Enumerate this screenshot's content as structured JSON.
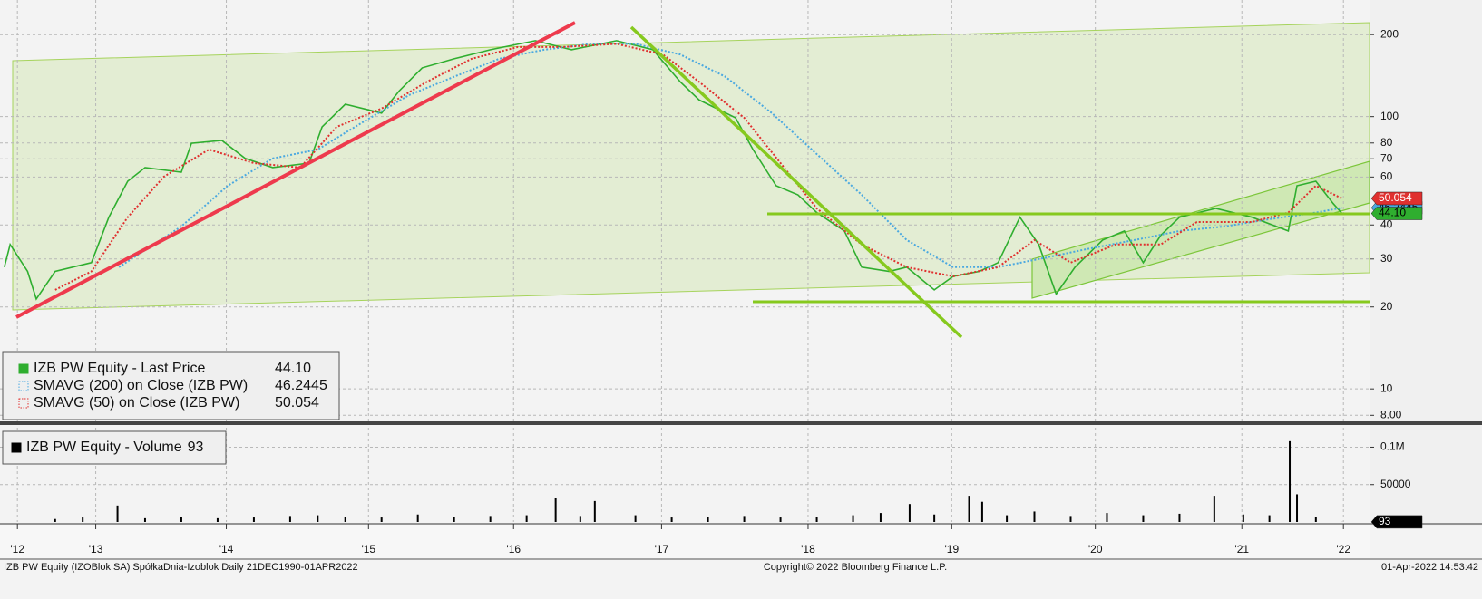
{
  "chart_data": [
    {
      "type": "line",
      "yscale": "log",
      "grid": true,
      "xlim": [
        2012.96,
        2022.4
      ],
      "ylim": [
        7.6,
        268
      ],
      "yticks": [
        200,
        100,
        80,
        70,
        60,
        40,
        30,
        20,
        10,
        {
          "value": 8,
          "label": "8.00"
        }
      ],
      "series": [
        {
          "name": "IZB PW Equity - Last Price",
          "color": "#2fae2f",
          "style": "solid",
          "last_label": "44.10",
          "x": [
            2012.99,
            2013.03,
            2013.15,
            2013.21,
            2013.34,
            2013.59,
            2013.71,
            2013.84,
            2013.96,
            2014.21,
            2014.28,
            2014.49,
            2014.65,
            2014.84,
            2015.09,
            2015.18,
            2015.34,
            2015.59,
            2015.71,
            2015.87,
            2016.09,
            2016.34,
            2016.65,
            2016.9,
            2017.21,
            2017.46,
            2017.65,
            2017.78,
            2018.03,
            2018.15,
            2018.31,
            2018.46,
            2018.59,
            2018.78,
            2018.9,
            2019.09,
            2019.21,
            2019.4,
            2019.53,
            2019.71,
            2019.84,
            2019.99,
            2020.12,
            2020.24,
            2020.37,
            2020.56,
            2020.71,
            2020.84,
            2020.96,
            2021.09,
            2021.34,
            2021.59,
            2021.84,
            2021.9,
            2022.03,
            2022.15,
            2022.21
          ],
          "values": [
            28.0,
            33.9,
            27.0,
            21.4,
            27.0,
            29.1,
            42.7,
            57.9,
            65.0,
            62.5,
            79.8,
            81.7,
            70.2,
            65.0,
            67.5,
            91.6,
            111,
            103,
            124,
            151,
            163,
            176,
            190,
            176,
            190,
            176,
            134,
            115,
            99,
            75.7,
            55.7,
            51.6,
            44.4,
            38.0,
            28.0,
            27.0,
            28.0,
            23.1,
            25.9,
            27.0,
            29.1,
            42.7,
            33.9,
            22.3,
            28.0,
            35.2,
            38.0,
            29.1,
            36.6,
            42.7,
            46.0,
            42.7,
            38.0,
            55.7,
            57.9,
            47.9,
            44.1
          ]
        },
        {
          "name": "SMAVG (200)  on Close (IZB PW)",
          "color": "#4aa8e0",
          "style": "dotted",
          "last_label": "46.2445",
          "x": [
            2013.78,
            2014.21,
            2014.53,
            2014.84,
            2015.15,
            2015.46,
            2015.78,
            2016.09,
            2016.4,
            2016.71,
            2017.03,
            2017.34,
            2017.65,
            2017.96,
            2018.28,
            2018.59,
            2018.9,
            2019.21,
            2019.53,
            2019.84,
            2020.15,
            2020.46,
            2020.78,
            2021.09,
            2021.4,
            2021.71,
            2022.03,
            2022.21
          ],
          "values": [
            28.0,
            39.5,
            55.7,
            70.2,
            75.7,
            95.3,
            120,
            140,
            163,
            176,
            185,
            185,
            169,
            140,
            103,
            72.8,
            51.6,
            35.2,
            28.0,
            28.0,
            30.2,
            32.7,
            35.2,
            38.0,
            39.5,
            42.0,
            44.4,
            46.2445
          ]
        },
        {
          "name": "SMAVG (50)  on Close (IZB PW)",
          "color": "#e0302f",
          "style": "dotted",
          "last_label": "50.054",
          "x": [
            2013.34,
            2013.59,
            2013.84,
            2014.09,
            2014.4,
            2014.71,
            2015.03,
            2015.28,
            2015.59,
            2015.9,
            2016.21,
            2016.53,
            2016.84,
            2017.21,
            2017.53,
            2017.78,
            2018.09,
            2018.34,
            2018.59,
            2018.9,
            2019.21,
            2019.53,
            2019.84,
            2020.09,
            2020.34,
            2020.65,
            2020.96,
            2021.21,
            2021.59,
            2021.84,
            2022.03,
            2022.21
          ],
          "values": [
            23.1,
            27.0,
            42.7,
            60.2,
            75.7,
            67.5,
            65.0,
            91.6,
            107,
            134,
            163,
            180,
            180,
            185,
            169,
            134,
            99,
            67.5,
            46.0,
            33.9,
            28.0,
            25.9,
            28.0,
            35.2,
            29.1,
            33.9,
            33.9,
            41.0,
            41.0,
            44.4,
            55.7,
            50.054
          ]
        }
      ]
    },
    {
      "type": "bar",
      "grid": true,
      "xlim": [
        2012.96,
        2022.4
      ],
      "ylim": [
        0,
        126000
      ],
      "yticks": [
        {
          "value": 100000,
          "label": "0.1M"
        },
        50000
      ],
      "xticks": [
        {
          "value": 2013.08,
          "label": "'12"
        },
        {
          "value": 2013.62,
          "label": "'13"
        },
        {
          "value": 2014.52,
          "label": "'14"
        },
        {
          "value": 2015.5,
          "label": "'15"
        },
        {
          "value": 2016.5,
          "label": "'16"
        },
        {
          "value": 2017.52,
          "label": "'17"
        },
        {
          "value": 2018.53,
          "label": "'18"
        },
        {
          "value": 2019.52,
          "label": "'19"
        },
        {
          "value": 2020.51,
          "label": "'20"
        },
        {
          "value": 2021.52,
          "label": "'21"
        },
        {
          "value": 2022.22,
          "label": "'22"
        }
      ],
      "series": [
        {
          "name": "IZB PW Equity - Volume",
          "color": "#000000",
          "last_label": "93",
          "x": [
            2013.34,
            2013.53,
            2013.77,
            2013.96,
            2014.21,
            2014.46,
            2014.71,
            2014.96,
            2015.15,
            2015.34,
            2015.59,
            2015.84,
            2016.09,
            2016.34,
            2016.59,
            2016.79,
            2016.96,
            2017.06,
            2017.34,
            2017.59,
            2017.84,
            2018.09,
            2018.34,
            2018.59,
            2018.84,
            2019.03,
            2019.23,
            2019.4,
            2019.64,
            2019.73,
            2019.9,
            2020.09,
            2020.34,
            2020.59,
            2020.84,
            2021.09,
            2021.33,
            2021.53,
            2021.71,
            2021.85,
            2021.9,
            2022.03,
            2022.21
          ],
          "values": [
            4000,
            6000,
            22000,
            5000,
            7000,
            5000,
            6000,
            8000,
            9000,
            7000,
            6000,
            10000,
            7000,
            8000,
            9000,
            32000,
            8000,
            28000,
            9000,
            6000,
            7000,
            8000,
            6000,
            7000,
            9000,
            12000,
            24000,
            10000,
            35000,
            27000,
            9000,
            14000,
            8000,
            12000,
            9000,
            11000,
            35000,
            10000,
            9000,
            108000,
            37000,
            7000,
            93
          ]
        }
      ]
    }
  ],
  "footer": {
    "left": "IZB PW Equity (IZOBlok SA) SpółkaDnia-Izoblok  Daily 21DEC1990-01APR2022",
    "center": "Copyright© 2022 Bloomberg Finance L.P.",
    "right": "01-Apr-2022 14:53:42"
  }
}
